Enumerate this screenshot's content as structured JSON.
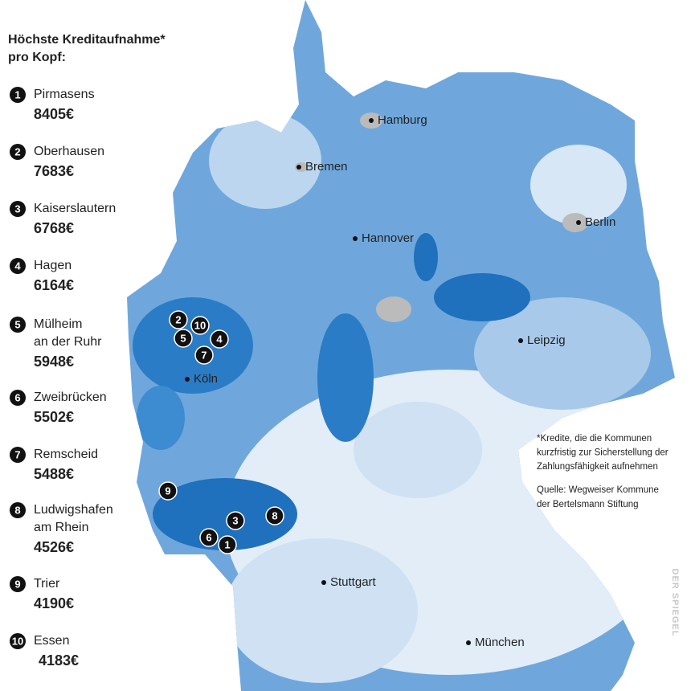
{
  "legend": {
    "title_lines": [
      "Höchste Kreditaufnahme*",
      "pro Kopf:"
    ],
    "ranking": [
      {
        "rank": "1",
        "name_lines": [
          "Pirmasens"
        ],
        "amount": "8405€"
      },
      {
        "rank": "2",
        "name_lines": [
          "Oberhausen"
        ],
        "amount": "7683€"
      },
      {
        "rank": "3",
        "name_lines": [
          "Kaiserslautern"
        ],
        "amount": "6768€"
      },
      {
        "rank": "4",
        "name_lines": [
          "Hagen"
        ],
        "amount": "6164€"
      },
      {
        "rank": "5",
        "name_lines": [
          "Mülheim",
          "an der Ruhr"
        ],
        "amount": "5948€"
      },
      {
        "rank": "6",
        "name_lines": [
          "Zweibrücken"
        ],
        "amount": "5502€"
      },
      {
        "rank": "7",
        "name_lines": [
          "Remscheid"
        ],
        "amount": "5488€"
      },
      {
        "rank": "8",
        "name_lines": [
          "Ludwigshafen",
          "am Rhein"
        ],
        "amount": "4526€"
      },
      {
        "rank": "9",
        "name_lines": [
          "Trier"
        ],
        "amount": "4190€"
      },
      {
        "rank": "10",
        "name_lines": [
          "Essen"
        ],
        "amount": "4183€"
      }
    ]
  },
  "map": {
    "cities": [
      "Hamburg",
      "Bremen",
      "Berlin",
      "Hannover",
      "Leipzig",
      "Köln",
      "Stuttgart",
      "München"
    ],
    "markers": [
      "2",
      "10",
      "5",
      "4",
      "7",
      "9",
      "3",
      "8",
      "6",
      "1"
    ]
  },
  "footnote_lines": [
    "*Kredite, die die Kommunen",
    "kurzfristig zur Sicherstellung der",
    "Zahlungsfähigkeit aufnehmen"
  ],
  "source_lines": [
    "Quelle: Wegweiser Kommune",
    "der Bertelsmann Stiftung"
  ],
  "credit": "DER SPIEGEL"
}
